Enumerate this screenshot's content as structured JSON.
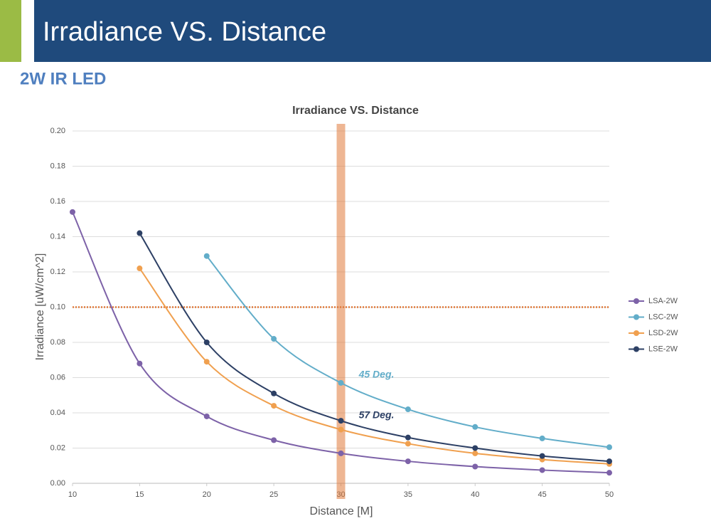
{
  "header": {
    "title": "Irradiance VS. Distance",
    "subtitle": "2W IR LED"
  },
  "chart_data": {
    "type": "line",
    "title": "Irradiance VS.  Distance",
    "x_label": "Distance [M]",
    "y_label": "Irradiance [uW/cm^2]",
    "x": [
      10,
      15,
      20,
      25,
      30,
      35,
      40,
      45,
      50
    ],
    "series": [
      {
        "name": "LSA-2W",
        "color": "#7d62a8",
        "values": [
          0.154,
          0.068,
          0.038,
          0.0245,
          0.017,
          0.0125,
          0.0095,
          0.0075,
          0.006
        ]
      },
      {
        "name": "LSC-2W",
        "color": "#62adc9",
        "values": [
          null,
          null,
          0.129,
          0.082,
          0.057,
          0.042,
          0.032,
          0.0255,
          0.0205
        ]
      },
      {
        "name": "LSD-2W",
        "color": "#f0a04f",
        "values": [
          null,
          0.122,
          0.069,
          0.044,
          0.0305,
          0.0225,
          0.017,
          0.0135,
          0.011
        ]
      },
      {
        "name": "LSE-2W",
        "color": "#2d4065",
        "values": [
          null,
          0.142,
          0.08,
          0.051,
          0.0355,
          0.026,
          0.02,
          0.0155,
          0.0125
        ]
      }
    ],
    "xlim": [
      10,
      50
    ],
    "xticks": [
      10,
      15,
      20,
      25,
      30,
      35,
      40,
      45,
      50
    ],
    "ylim": [
      0,
      0.2
    ],
    "yticks": [
      {
        "value": 0,
        "label": "0.00"
      },
      0.02,
      0.04,
      0.06,
      0.08,
      {
        "value": 0.1,
        "label": "0.10"
      },
      0.12,
      0.14,
      0.16,
      0.18,
      {
        "value": 0.2,
        "label": "0.20"
      }
    ],
    "grid": true,
    "legend": "right",
    "reference_lines": {
      "y": 0.1,
      "x": 30,
      "color": "#e07a3a"
    },
    "annotations": [
      {
        "text": "45 Deg.",
        "x": 30.8,
        "y": 0.059,
        "color": "#62adc9"
      },
      {
        "text": "57 Deg.",
        "x": 30.8,
        "y": 0.036,
        "color": "#2d4065"
      }
    ]
  }
}
